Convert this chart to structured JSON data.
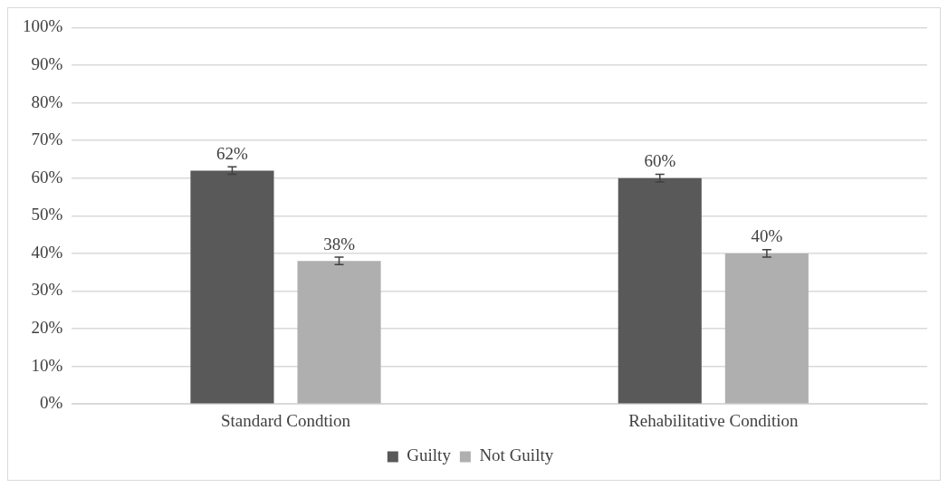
{
  "chart_data": {
    "type": "bar",
    "categories": [
      "Standard Condtion",
      "Rehabilitative Condition"
    ],
    "series": [
      {
        "name": "Guilty",
        "color": "#595959",
        "values": [
          62,
          60
        ],
        "errors": [
          1,
          1
        ],
        "value_labels": [
          "62%",
          "60%"
        ]
      },
      {
        "name": "Not Guilty",
        "color": "#afafaf",
        "values": [
          38,
          40
        ],
        "errors": [
          1,
          1
        ],
        "value_labels": [
          "38%",
          "40%"
        ]
      }
    ],
    "ylim": [
      0,
      100
    ],
    "yticks": [
      {
        "value": 0,
        "label": "0%"
      },
      {
        "value": 10,
        "label": "10%"
      },
      {
        "value": 20,
        "label": "20%"
      },
      {
        "value": 30,
        "label": "30%"
      },
      {
        "value": 40,
        "label": "40%"
      },
      {
        "value": 50,
        "label": "50%"
      },
      {
        "value": 60,
        "label": "60%"
      },
      {
        "value": 70,
        "label": "70%"
      },
      {
        "value": 80,
        "label": "80%"
      },
      {
        "value": 90,
        "label": "90%"
      },
      {
        "value": 100,
        "label": "100%"
      }
    ],
    "grid": "y",
    "legend": "bottom"
  }
}
